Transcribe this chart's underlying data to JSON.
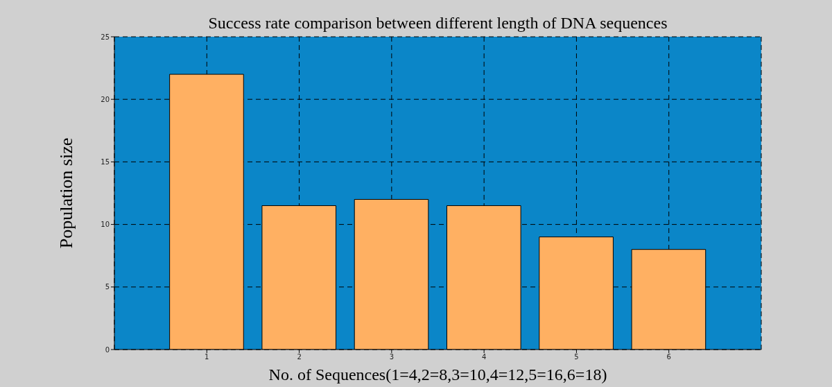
{
  "chart_data": {
    "type": "bar",
    "title": "Success rate comparison between different length of DNA sequences",
    "xlabel": "No. of Sequences(1=4,2=8,3=10,4=12,5=16,6=18)",
    "ylabel": "Population size",
    "x": [
      1,
      2,
      3,
      4,
      5,
      6
    ],
    "values": [
      22,
      11.5,
      12,
      11.5,
      9,
      8
    ],
    "color": "#ffb062",
    "xlim": [
      0,
      7
    ],
    "xticks": [
      1,
      2,
      3,
      4,
      5,
      6
    ],
    "ylim": [
      0,
      25
    ],
    "yticks": [
      0,
      5,
      10,
      15,
      20,
      25
    ],
    "grid": true
  }
}
